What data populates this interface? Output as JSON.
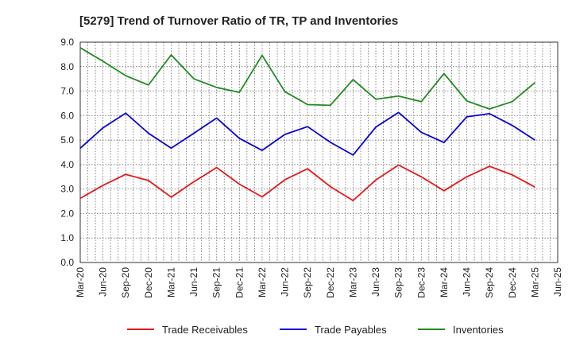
{
  "chart_data": {
    "type": "line",
    "title": "[5279]  Trend of Turnover Ratio of TR, TP and Inventories",
    "xlabel": "",
    "ylabel": "",
    "ylim": [
      0.0,
      9.0
    ],
    "y_ticks": [
      "0.0",
      "1.0",
      "2.0",
      "3.0",
      "4.0",
      "5.0",
      "6.0",
      "7.0",
      "8.0",
      "9.0"
    ],
    "x_tick_labels": [
      "Mar-20",
      "Jun-20",
      "Sep-20",
      "Dec-20",
      "Mar-21",
      "Jun-21",
      "Sep-21",
      "Dec-21",
      "Mar-22",
      "Jun-22",
      "Sep-22",
      "Dec-22",
      "Mar-23",
      "Jun-23",
      "Sep-23",
      "Dec-23",
      "Mar-24",
      "Jun-24",
      "Sep-24",
      "Dec-24",
      "Mar-25",
      "Jun-25"
    ],
    "grid": true,
    "legend_position": "bottom",
    "categories": [
      "Mar-20",
      "Jun-20",
      "Sep-20",
      "Dec-20",
      "Mar-21",
      "Jun-21",
      "Sep-21",
      "Dec-21",
      "Mar-22",
      "Jun-22",
      "Sep-22",
      "Dec-22",
      "Mar-23",
      "Jun-23",
      "Sep-23",
      "Dec-23",
      "Mar-24",
      "Jun-24",
      "Sep-24",
      "Dec-24",
      "Mar-25"
    ],
    "series": [
      {
        "name": "Trade Receivables",
        "color": "#e31a1c",
        "values": [
          2.62,
          3.15,
          3.6,
          3.35,
          2.67,
          3.3,
          3.88,
          3.2,
          2.68,
          3.38,
          3.83,
          3.1,
          2.53,
          3.37,
          3.98,
          3.5,
          2.93,
          3.5,
          3.93,
          3.58,
          3.08
        ]
      },
      {
        "name": "Trade Payables",
        "color": "#0a00d6",
        "values": [
          4.67,
          5.5,
          6.1,
          5.28,
          4.67,
          5.28,
          5.9,
          5.07,
          4.58,
          5.23,
          5.55,
          4.91,
          4.39,
          5.53,
          6.13,
          5.32,
          4.9,
          5.95,
          6.08,
          5.6,
          5.0
        ]
      },
      {
        "name": "Inventories",
        "color": "#238b22",
        "values": [
          8.77,
          8.22,
          7.63,
          7.25,
          8.48,
          7.5,
          7.15,
          6.95,
          8.46,
          6.98,
          6.45,
          6.42,
          7.47,
          6.67,
          6.8,
          6.57,
          7.72,
          6.6,
          6.27,
          6.57,
          7.35
        ]
      }
    ]
  }
}
